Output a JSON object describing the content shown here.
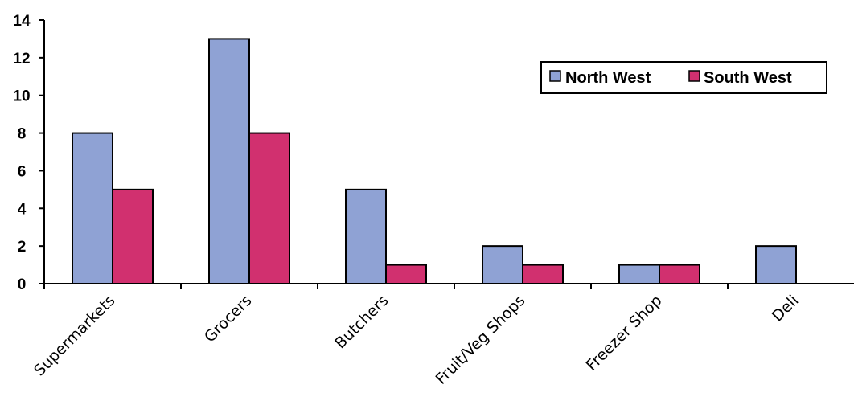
{
  "chart_data": {
    "type": "bar",
    "title": "",
    "xlabel": "",
    "ylabel": "",
    "categories": [
      "Supermarkets",
      "Grocers",
      "Butchers",
      "Fruit/Veg Shops",
      "Freezer Shop",
      "Deli"
    ],
    "series": [
      {
        "name": "North West",
        "color": "#8FA2D4",
        "values": [
          8,
          13,
          5,
          2,
          1,
          2
        ]
      },
      {
        "name": "South West",
        "color": "#D1306F",
        "values": [
          5,
          8,
          1,
          1,
          1,
          0
        ]
      }
    ],
    "ylim": [
      0,
      14
    ],
    "yticks": [
      "0",
      "2",
      "4",
      "6",
      "8",
      "10",
      "12",
      "14"
    ],
    "grid": false,
    "legend_position": "top-right"
  }
}
